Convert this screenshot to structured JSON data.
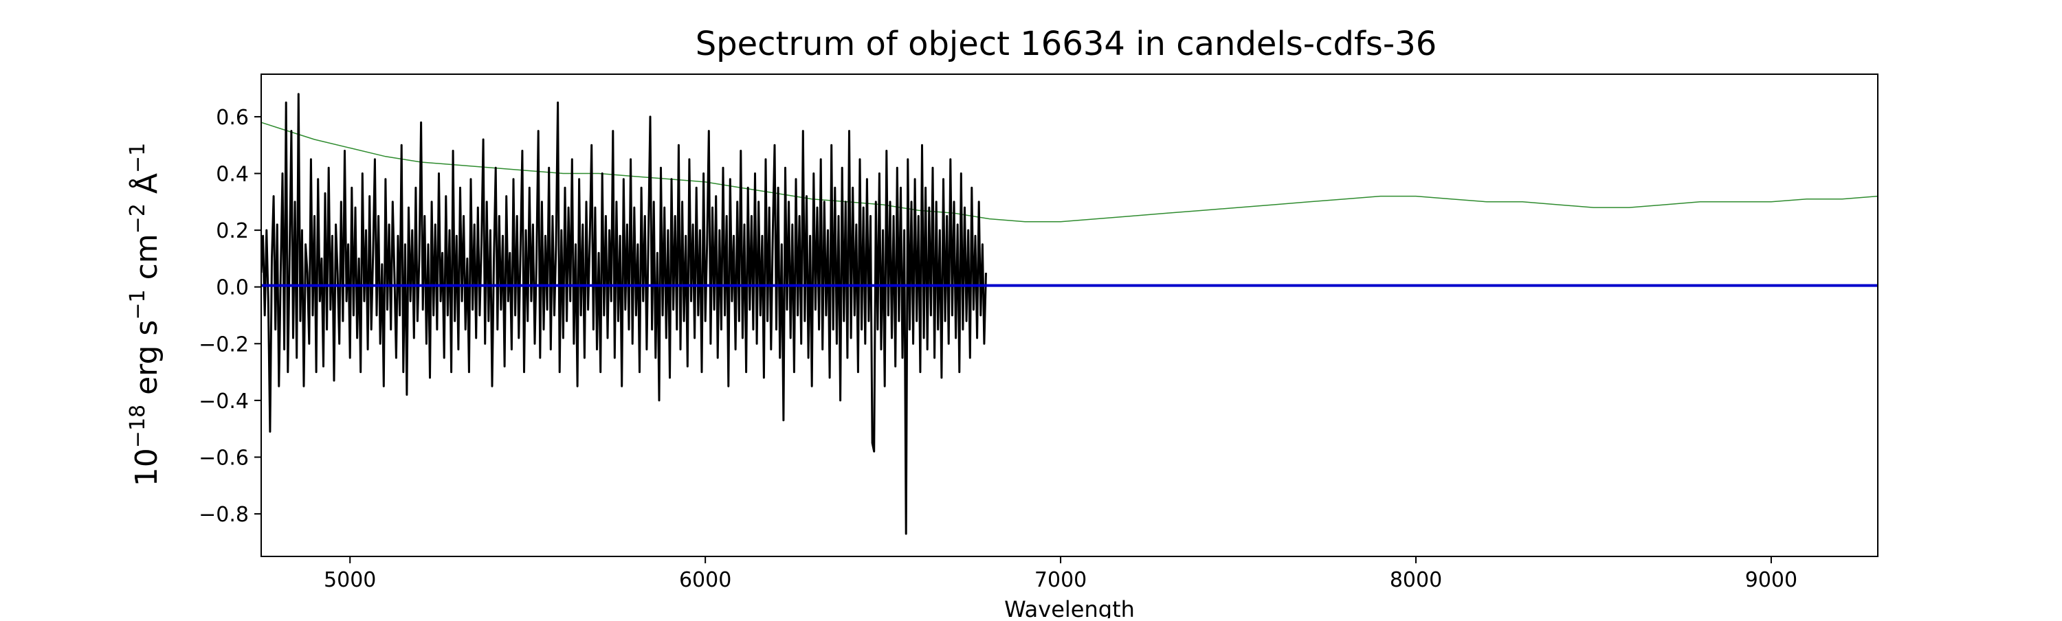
{
  "chart_data": {
    "type": "line",
    "title": "Spectrum of object 16634 in candels-cdfs-36",
    "xlabel": "Wavelength",
    "ylabel": {
      "prefix": "10",
      "prefix_exp": "−18",
      "unit1": " erg s",
      "unit1_exp": "−1",
      "unit2": " cm",
      "unit2_exp": "−2",
      "unit3": " Å",
      "unit3_exp": "−1"
    },
    "xlim": [
      4750,
      9300
    ],
    "ylim": [
      -0.95,
      0.75
    ],
    "xticks": [
      5000,
      6000,
      7000,
      8000,
      9000
    ],
    "xtick_labels": [
      "5000",
      "6000",
      "7000",
      "8000",
      "9000"
    ],
    "yticks": [
      -0.8,
      -0.6,
      -0.4,
      -0.2,
      0.0,
      0.2,
      0.4,
      0.6
    ],
    "ytick_labels": [
      "−0.8",
      "−0.6",
      "−0.4",
      "−0.2",
      "0.0",
      "0.2",
      "0.4",
      "0.6"
    ],
    "grid": false,
    "series": [
      {
        "role": "error",
        "color": "#2e8b2e",
        "x": [
          4750,
          4800,
          4900,
          5000,
          5100,
          5200,
          5300,
          5400,
          5500,
          5600,
          5700,
          5800,
          5900,
          6000,
          6100,
          6200,
          6300,
          6400,
          6500,
          6600,
          6700,
          6800,
          6900,
          7000,
          7100,
          7200,
          7300,
          7400,
          7500,
          7600,
          7700,
          7800,
          7900,
          8000,
          8100,
          8200,
          8300,
          8400,
          8500,
          8600,
          8700,
          8800,
          8900,
          9000,
          9100,
          9200,
          9300
        ],
        "values": [
          0.58,
          0.56,
          0.52,
          0.49,
          0.46,
          0.44,
          0.43,
          0.42,
          0.41,
          0.4,
          0.4,
          0.39,
          0.38,
          0.37,
          0.35,
          0.33,
          0.31,
          0.3,
          0.29,
          0.27,
          0.26,
          0.24,
          0.23,
          0.23,
          0.24,
          0.25,
          0.26,
          0.27,
          0.28,
          0.29,
          0.3,
          0.31,
          0.32,
          0.32,
          0.31,
          0.3,
          0.3,
          0.29,
          0.28,
          0.28,
          0.29,
          0.3,
          0.3,
          0.3,
          0.31,
          0.31,
          0.32
        ]
      },
      {
        "role": "flux",
        "color": "#000000",
        "x_start": 4750,
        "x_step": 5,
        "values": [
          0.05,
          0.18,
          -0.1,
          0.2,
          -0.05,
          -0.51,
          0.1,
          0.32,
          -0.15,
          0.22,
          -0.35,
          0.05,
          0.4,
          -0.22,
          0.65,
          -0.3,
          0.12,
          0.55,
          -0.18,
          0.3,
          -0.25,
          0.68,
          -0.12,
          0.2,
          -0.35,
          0.15,
          0.05,
          -0.2,
          0.45,
          -0.1,
          0.25,
          -0.3,
          0.38,
          -0.05,
          0.1,
          -0.28,
          0.33,
          -0.15,
          0.42,
          -0.08,
          0.18,
          -0.33,
          0.22,
          0.05,
          -0.2,
          0.3,
          -0.12,
          0.48,
          -0.05,
          0.15,
          -0.25,
          0.35,
          -0.1,
          0.28,
          -0.18,
          0.1,
          -0.3,
          0.4,
          -0.05,
          0.2,
          -0.22,
          0.32,
          -0.15,
          0.12,
          0.45,
          -0.1,
          0.25,
          -0.2,
          0.08,
          -0.35,
          0.38,
          -0.08,
          0.22,
          -0.15,
          0.3,
          0.05,
          -0.25,
          0.18,
          -0.1,
          0.5,
          -0.3,
          0.15,
          -0.38,
          0.28,
          -0.05,
          0.2,
          -0.18,
          0.35,
          -0.12,
          0.1,
          0.58,
          -0.08,
          0.25,
          -0.2,
          0.15,
          -0.32,
          0.3,
          -0.1,
          0.22,
          -0.15,
          0.4,
          -0.05,
          0.12,
          -0.25,
          0.32,
          -0.1,
          0.2,
          -0.3,
          0.48,
          -0.12,
          0.18,
          -0.22,
          0.35,
          -0.05,
          0.25,
          -0.15,
          0.1,
          -0.3,
          0.38,
          -0.08,
          0.22,
          -0.18,
          0.28,
          -0.1,
          0.15,
          0.52,
          -0.2,
          0.3,
          -0.12,
          0.2,
          -0.35,
          0.1,
          0.42,
          -0.15,
          0.25,
          -0.08,
          0.18,
          -0.28,
          0.32,
          -0.05,
          0.12,
          -0.22,
          0.38,
          -0.1,
          0.25,
          -0.18,
          0.15,
          0.48,
          -0.3,
          0.2,
          -0.12,
          0.35,
          -0.05,
          0.22,
          -0.2,
          0.1,
          0.55,
          -0.25,
          0.3,
          -0.15,
          0.18,
          -0.08,
          0.42,
          -0.22,
          0.25,
          -0.1,
          0.15,
          0.65,
          -0.3,
          0.2,
          -0.18,
          0.35,
          -0.12,
          0.28,
          -0.05,
          0.45,
          -0.2,
          0.15,
          -0.35,
          0.38,
          -0.1,
          0.22,
          -0.25,
          0.3,
          -0.08,
          0.18,
          0.5,
          -0.15,
          0.28,
          -0.22,
          0.12,
          -0.3,
          0.4,
          -0.1,
          0.25,
          -0.18,
          0.2,
          -0.05,
          0.55,
          -0.25,
          0.3,
          -0.12,
          0.18,
          -0.35,
          0.38,
          -0.08,
          0.22,
          -0.15,
          0.45,
          -0.2,
          0.28,
          -0.1,
          0.15,
          -0.3,
          0.35,
          -0.05,
          0.25,
          -0.22,
          0.18,
          0.6,
          -0.15,
          0.3,
          -0.25,
          0.12,
          -0.4,
          0.42,
          -0.1,
          0.28,
          -0.18,
          0.2,
          -0.32,
          0.38,
          -0.08,
          0.25,
          -0.15,
          0.5,
          -0.22,
          0.3,
          -0.12,
          0.18,
          -0.28,
          0.45,
          -0.05,
          0.22,
          -0.18,
          0.35,
          -0.1,
          0.2,
          -0.3,
          0.4,
          -0.12,
          0.15,
          0.55,
          -0.2,
          0.28,
          -0.08,
          0.32,
          -0.25,
          0.2,
          -0.15,
          0.42,
          -0.1,
          0.25,
          -0.35,
          0.38,
          -0.05,
          0.18,
          -0.22,
          0.3,
          -0.12,
          0.48,
          -0.18,
          0.22,
          -0.3,
          0.35,
          -0.08,
          0.25,
          -0.15,
          0.4,
          -0.2,
          0.3,
          -0.1,
          0.18,
          -0.32,
          0.45,
          -0.12,
          0.28,
          -0.22,
          0.2,
          0.5,
          -0.15,
          0.35,
          -0.25,
          0.15,
          -0.47,
          0.42,
          -0.08,
          0.3,
          -0.18,
          0.22,
          -0.3,
          0.38,
          -0.1,
          0.25,
          -0.2,
          0.55,
          -0.12,
          0.32,
          -0.25,
          0.18,
          -0.35,
          0.4,
          -0.08,
          0.28,
          -0.15,
          0.45,
          -0.22,
          0.3,
          -0.1,
          0.2,
          -0.32,
          0.5,
          -0.15,
          0.35,
          -0.2,
          0.25,
          -0.4,
          0.42,
          -0.12,
          0.3,
          -0.25,
          0.55,
          -0.18,
          0.35,
          -0.1,
          0.22,
          -0.3,
          0.45,
          -0.15,
          0.28,
          -0.2,
          0.38,
          -0.12,
          0.25,
          -0.55,
          -0.58,
          0.3,
          -0.15,
          0.4,
          -0.22,
          0.2,
          -0.35,
          0.48,
          -0.1,
          0.3,
          -0.18,
          0.25,
          -0.28,
          0.42,
          -0.12,
          0.35,
          -0.25,
          0.2,
          -0.87,
          0.45,
          -0.15,
          0.3,
          -0.2,
          0.38,
          -0.12,
          0.25,
          -0.3,
          0.5,
          -0.18,
          0.35,
          -0.22,
          0.28,
          -0.1,
          0.42,
          -0.25,
          0.3,
          -0.15,
          0.2,
          -0.32,
          0.38,
          -0.12,
          0.25,
          -0.2,
          0.45,
          -0.1,
          0.3,
          -0.18,
          0.22,
          -0.3,
          0.4,
          -0.15,
          0.28,
          -0.12,
          0.2,
          -0.25,
          0.35,
          -0.08,
          0.18,
          -0.18,
          0.3,
          -0.1,
          0.15,
          -0.2,
          0.05
        ]
      },
      {
        "role": "model",
        "color": "#0000cc",
        "x": [
          4750,
          9300
        ],
        "values": [
          0.005,
          0.005
        ]
      }
    ]
  }
}
